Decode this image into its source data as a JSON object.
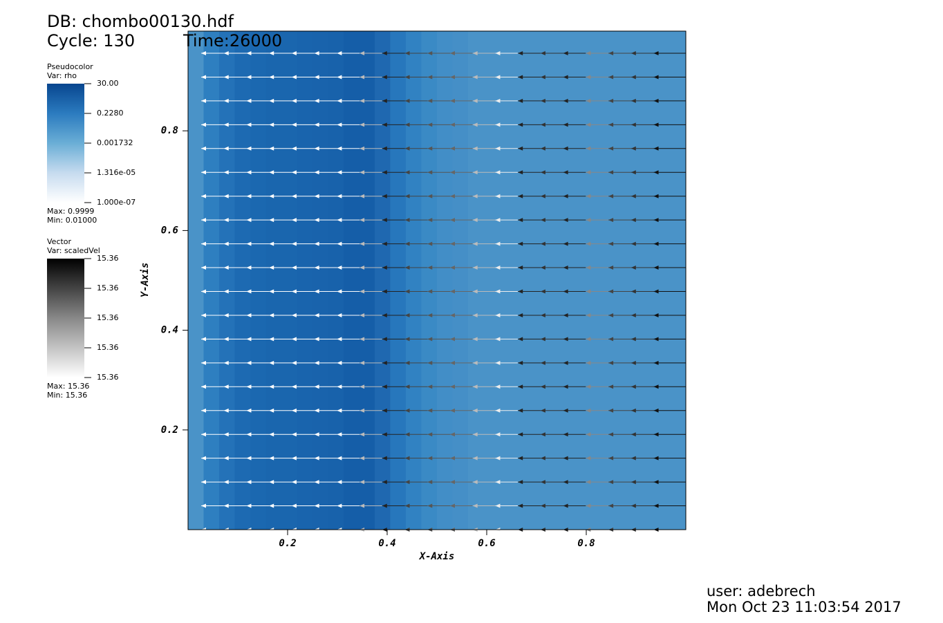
{
  "header": {
    "db": "DB: chombo00130.hdf",
    "cycle": "Cycle: 130",
    "time": "Time:26000"
  },
  "legends": [
    {
      "title": "Pseudocolor",
      "var": "Var: rho",
      "ticks": [
        "30.00",
        "0.2280",
        "0.001732",
        "1.316e-05",
        "1.000e-07"
      ],
      "max": "Max:  0.9999",
      "min": "Min:  0.01000",
      "colors": [
        "#08468f",
        "#2b7bbf",
        "#6aaed6",
        "#c6dbef",
        "#ffffff"
      ]
    },
    {
      "title": "Vector",
      "var": "Var: scaledVel",
      "ticks": [
        "15.36",
        "15.36",
        "15.36",
        "15.36",
        "15.36"
      ],
      "max": "Max:  15.36",
      "min": "Min:  15.36",
      "colors": [
        "#000000",
        "#888888",
        "#ffffff"
      ]
    }
  ],
  "chart_data": {
    "type": "heatmap",
    "xlabel": "X-Axis",
    "ylabel": "Y-Axis",
    "xlim": [
      0,
      1
    ],
    "ylim": [
      0,
      1
    ],
    "xticks": [
      0.2,
      0.4,
      0.6,
      0.8
    ],
    "yticks": [
      0.2,
      0.4,
      0.6,
      0.8
    ],
    "cell_colors": [
      "#4a93c8",
      "#2e7fc0",
      "#2472b8",
      "#1d6ab2",
      "#1b68b0",
      "#1a66ae",
      "#1a66ae",
      "#1964ad",
      "#1963ac",
      "#1862ab",
      "#155ea8",
      "#155ea8",
      "#1f68b0",
      "#2777bc",
      "#3182c2",
      "#3a8ac5",
      "#428ec7",
      "#458fc7",
      "#4a93c8",
      "#4a93c8",
      "#4a93c8",
      "#4a93c8",
      "#4a93c8",
      "#4a93c8",
      "#4a93c8",
      "#4a93c8",
      "#4a93c8",
      "#4a93c8",
      "#4a93c8",
      "#4a93c8",
      "#4a93c8",
      "#4a93c8"
    ],
    "arrow_colors": [
      "#ffffff",
      "#ffffff",
      "#ffffff",
      "#ffffff",
      "#ffffff",
      "#ffffff",
      "#ffffff",
      "#bbbbbb",
      "#222222",
      "#444444",
      "#555555",
      "#666666",
      "#bbbbbb",
      "#eeeeee",
      "#222222",
      "#333333",
      "#222222",
      "#888888",
      "#444444",
      "#333333",
      "#111111"
    ]
  },
  "footer": {
    "user": "user: adebrech",
    "date": "Mon Oct 23 11:03:54 2017"
  }
}
